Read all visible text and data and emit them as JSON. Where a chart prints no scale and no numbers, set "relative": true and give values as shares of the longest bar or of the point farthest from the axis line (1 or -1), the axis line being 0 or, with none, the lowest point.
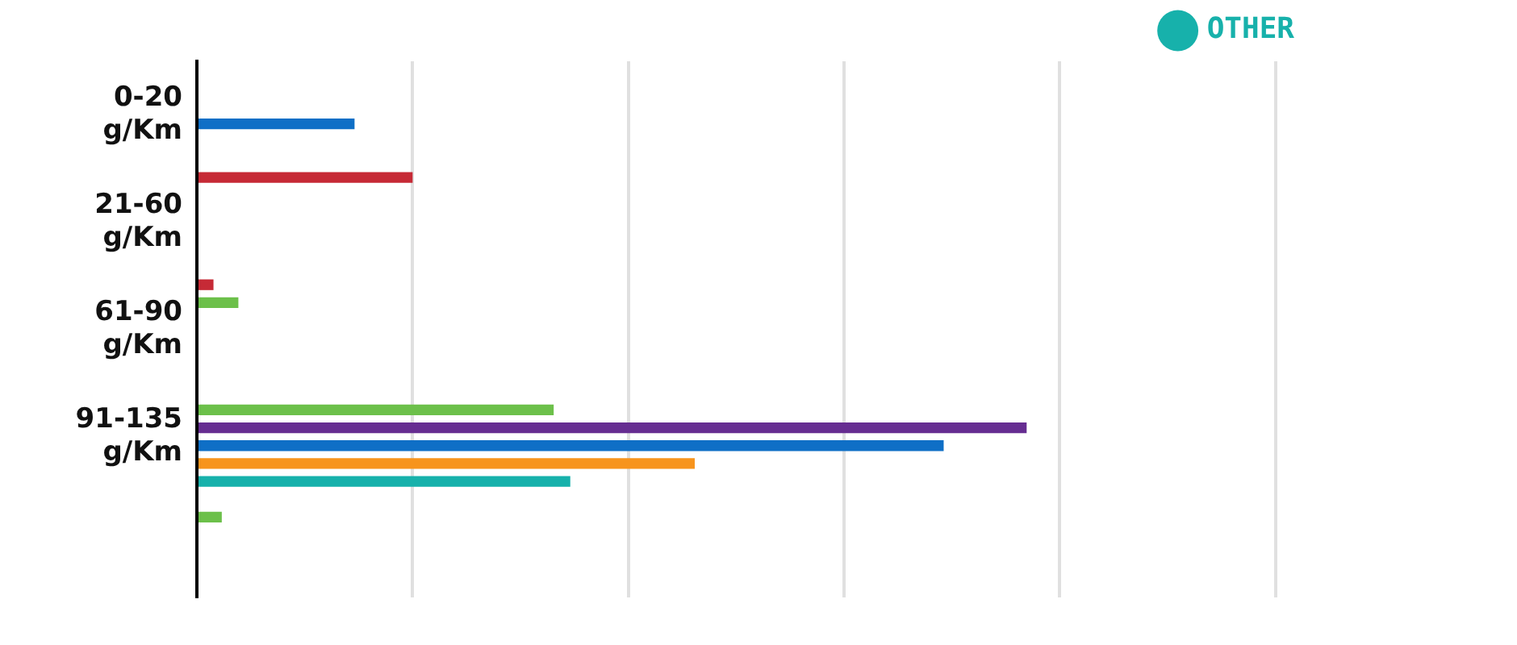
{
  "chart_data": {
    "type": "bar",
    "orientation": "horizontal",
    "relative": true,
    "grid": "x",
    "legend": "top right",
    "categories": [
      "0-20 g/Km",
      "21-60 g/Km",
      "61-90 g/Km",
      "91-135 g/Km",
      null
    ],
    "series": [
      {
        "color": "#c62a36",
        "values": [
          null,
          0.26,
          0.02,
          null,
          null
        ]
      },
      {
        "color": "#6cc04a",
        "values": [
          null,
          null,
          0.05,
          0.43,
          0.03
        ]
      },
      {
        "color": "#662d91",
        "values": [
          null,
          null,
          null,
          1,
          null
        ]
      },
      {
        "color": "#0f6fc6",
        "values": [
          0.19,
          null,
          null,
          0.9,
          null
        ]
      },
      {
        "color": "#f7941d",
        "values": [
          null,
          null,
          null,
          0.6,
          null
        ]
      },
      {
        "name": "OTHER",
        "color": "#17b1ab",
        "values": [
          null,
          null,
          null,
          0.45,
          null
        ]
      }
    ]
  }
}
